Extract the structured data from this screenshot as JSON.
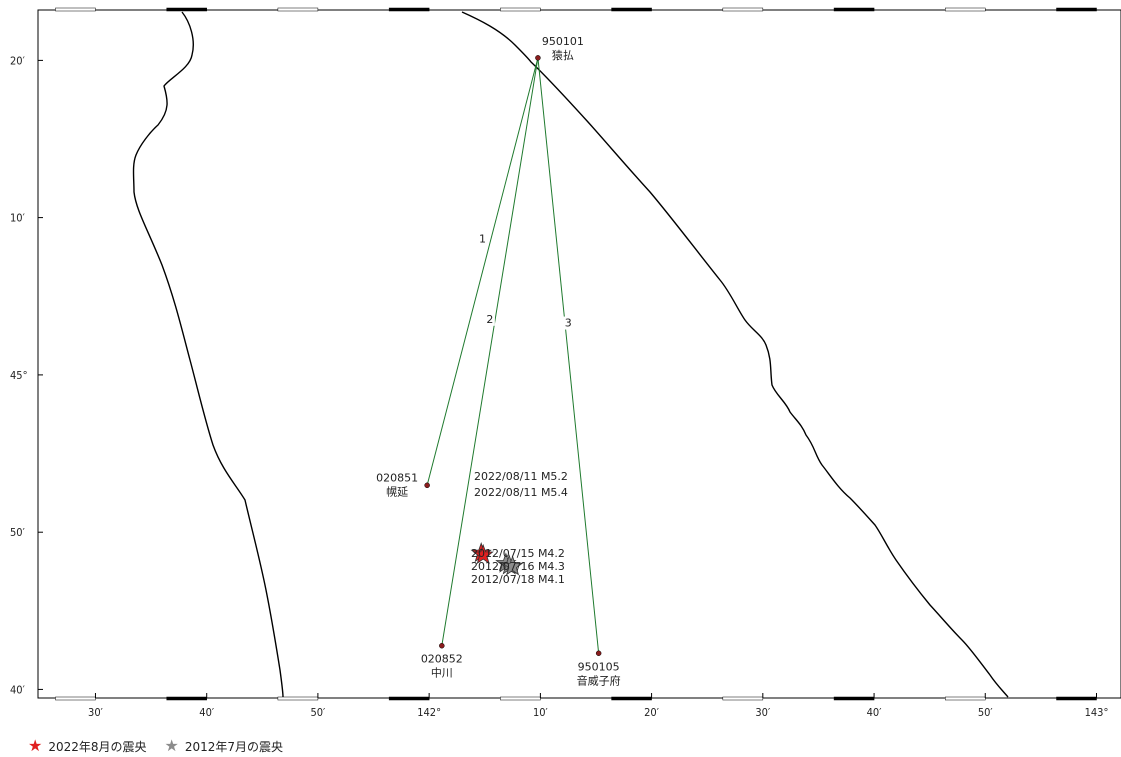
{
  "map": {
    "lat_ticks": [
      {
        "lat": 44.6667,
        "label": "40′"
      },
      {
        "lat": 44.8333,
        "label": "50′"
      },
      {
        "lat": 45.0,
        "label": "45°"
      },
      {
        "lat": 45.1667,
        "label": "10′"
      },
      {
        "lat": 45.3333,
        "label": "20′"
      }
    ],
    "lon_ticks": [
      {
        "lon": 141.5,
        "label": "30′"
      },
      {
        "lon": 141.6667,
        "label": "40′"
      },
      {
        "lon": 141.8333,
        "label": "50′"
      },
      {
        "lon": 142.0,
        "label": "142°"
      },
      {
        "lon": 142.1667,
        "label": "10′"
      },
      {
        "lon": 142.3333,
        "label": "20′"
      },
      {
        "lon": 142.5,
        "label": "30′"
      },
      {
        "lon": 142.6667,
        "label": "40′"
      },
      {
        "lon": 142.8333,
        "label": "50′"
      },
      {
        "lon": 143.0,
        "label": "143°"
      }
    ],
    "stations": [
      {
        "id": "sta-950101",
        "code": "950101",
        "name": "猿払",
        "lat": 45.336,
        "lon": 142.163,
        "label_pos": "above-right"
      },
      {
        "id": "sta-020851",
        "code": "020851",
        "name": "幌延",
        "lat": 44.883,
        "lon": 141.997,
        "label_pos": "left"
      },
      {
        "id": "sta-020852",
        "code": "020852",
        "name": "中川",
        "lat": 44.713,
        "lon": 142.019,
        "label_pos": "below"
      },
      {
        "id": "sta-950105",
        "code": "950105",
        "name": "音威子府",
        "lat": 44.705,
        "lon": 142.254,
        "label_pos": "below"
      }
    ],
    "baselines": [
      {
        "id": "1",
        "label": "1",
        "from": "sta-950101",
        "to": "sta-020851"
      },
      {
        "id": "2",
        "label": "2",
        "from": "sta-950101",
        "to": "sta-020852"
      },
      {
        "id": "3",
        "label": "3",
        "from": "sta-950101",
        "to": "sta-950105"
      }
    ],
    "epicenters_2022": [
      {
        "lat": 44.811,
        "lon": 142.078,
        "label": "2022/08/11 M5.2"
      },
      {
        "lat": 44.809,
        "lon": 142.081,
        "label": "2022/08/11 M5.4"
      }
    ],
    "epicenters_2012": [
      {
        "lat": 44.8,
        "lon": 142.115,
        "label": "2012/07/15 M4.2"
      },
      {
        "lat": 44.798,
        "lon": 142.12,
        "label": "2012/07/16 M4.3"
      },
      {
        "lat": 44.797,
        "lon": 142.125,
        "label": "2012/07/18 M4.1"
      }
    ],
    "colors": {
      "coast": "#000000",
      "baseline": "#1f7a2e",
      "station": "#8a1d1d",
      "star_2022": "#e02020",
      "star_2012": "#8c8c8c"
    }
  },
  "legend": {
    "items": [
      {
        "name": "legend-2022",
        "label": "2022年8月の震央",
        "color": "#e02020"
      },
      {
        "name": "legend-2012",
        "label": "2012年7月の震央",
        "color": "#8c8c8c"
      }
    ]
  }
}
